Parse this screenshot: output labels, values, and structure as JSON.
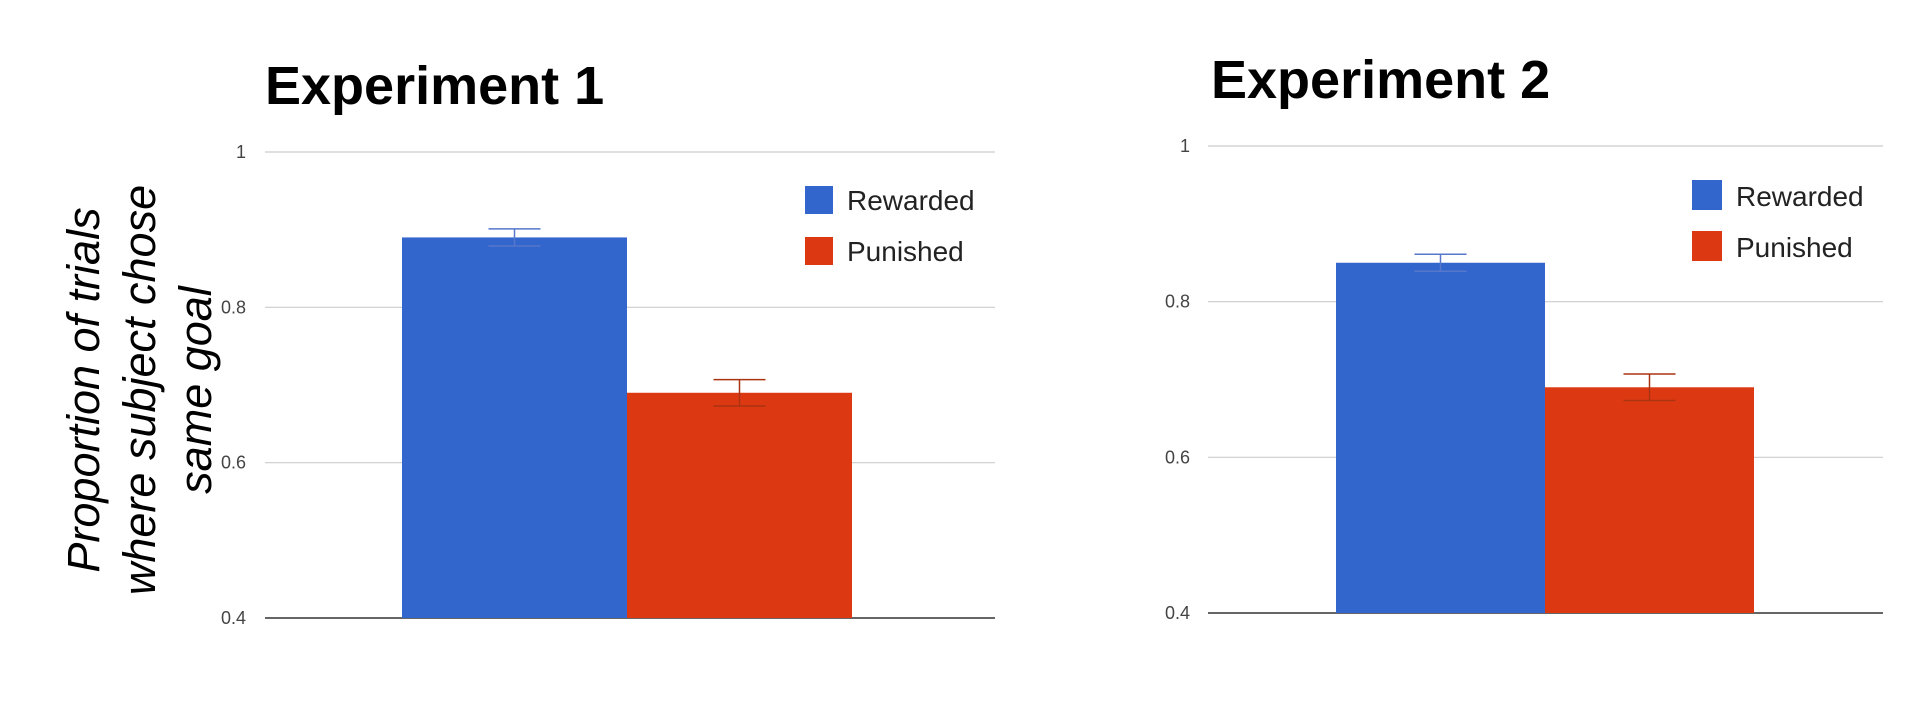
{
  "figure": {
    "ylabel_lines": [
      "Proportion of trials",
      "where subject chose",
      "same goal"
    ]
  },
  "chart_data": [
    {
      "type": "bar",
      "title": "Experiment 1",
      "ylim": [
        0.4,
        1
      ],
      "yticks": [
        "0.4",
        "0.6",
        "0.8",
        "1"
      ],
      "grid": true,
      "legend": "top-right",
      "series": [
        {
          "name": "Rewarded",
          "color": "#3366cc",
          "values": [
            0.89
          ],
          "error": [
            0.011
          ]
        },
        {
          "name": "Punished",
          "color": "#dc3912",
          "values": [
            0.69
          ],
          "error": [
            0.017
          ]
        }
      ]
    },
    {
      "type": "bar",
      "title": "Experiment 2",
      "ylim": [
        0.4,
        1
      ],
      "yticks": [
        "0.4",
        "0.6",
        "0.8",
        "1"
      ],
      "grid": true,
      "legend": "top-right",
      "series": [
        {
          "name": "Rewarded",
          "color": "#3366cc",
          "values": [
            0.85
          ],
          "error": [
            0.011
          ]
        },
        {
          "name": "Punished",
          "color": "#dc3912",
          "values": [
            0.69
          ],
          "error": [
            0.017
          ]
        }
      ]
    }
  ]
}
